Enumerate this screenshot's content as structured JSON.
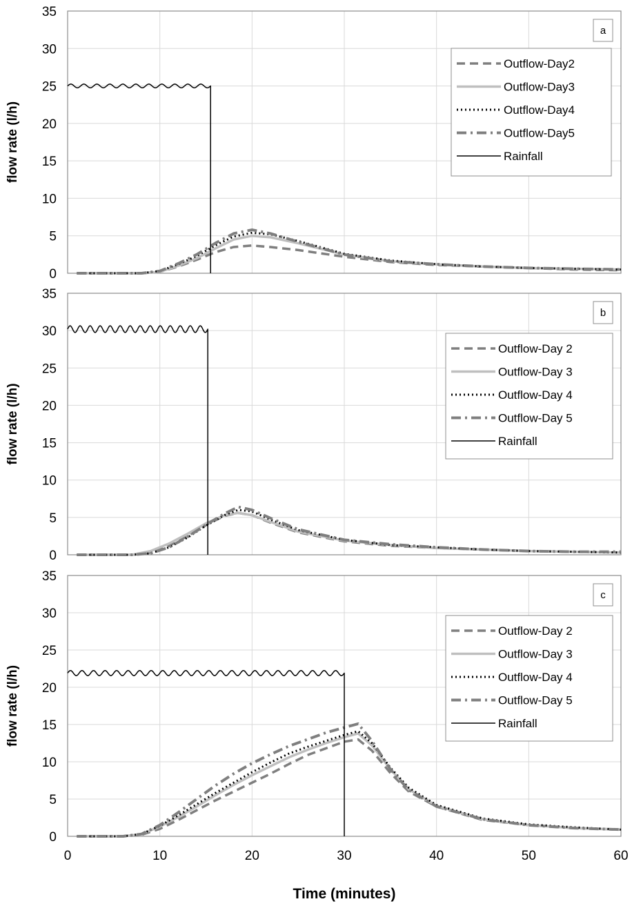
{
  "chart_data": [
    {
      "type": "line",
      "panel_label": "a",
      "ylabel": "flow rate (l/h)",
      "xlabel": "",
      "xlim": [
        0,
        60
      ],
      "ylim": [
        0,
        35
      ],
      "x_ticks": [
        0,
        10,
        20,
        30,
        40,
        50,
        60
      ],
      "y_ticks": [
        0,
        5,
        10,
        15,
        20,
        25,
        30,
        35
      ],
      "show_x_tick_labels": false,
      "grid": true,
      "legend_position": "top-right",
      "series": [
        {
          "name": "Outflow-Day2",
          "style": "dashed",
          "color": "#7f7f7f",
          "x": [
            1,
            8,
            10,
            12,
            14,
            16,
            18,
            20,
            22,
            25,
            30,
            35,
            40,
            45,
            50,
            55,
            60
          ],
          "y": [
            0,
            0,
            0.2,
            0.9,
            1.8,
            2.8,
            3.5,
            3.7,
            3.5,
            3.1,
            2.2,
            1.5,
            1.1,
            0.9,
            0.7,
            0.5,
            0.4
          ]
        },
        {
          "name": "Outflow-Day3",
          "style": "solid",
          "color": "#bfbfbf",
          "x": [
            1,
            8,
            10,
            12,
            14,
            16,
            18,
            20,
            22,
            25,
            30,
            35,
            40,
            45,
            50,
            55,
            60
          ],
          "y": [
            0,
            0,
            0.2,
            1.0,
            2.0,
            3.3,
            4.5,
            5.0,
            4.8,
            4.0,
            2.5,
            1.6,
            1.2,
            0.9,
            0.7,
            0.6,
            0.5
          ]
        },
        {
          "name": "Outflow-Day4",
          "style": "dotted",
          "color": "#000000",
          "x": [
            1,
            8,
            10,
            12,
            14,
            16,
            18,
            20,
            22,
            25,
            30,
            35,
            40,
            45,
            50,
            55,
            60
          ],
          "y": [
            0,
            0,
            0.3,
            1.2,
            2.3,
            3.7,
            4.9,
            5.4,
            5.2,
            4.3,
            2.6,
            1.7,
            1.2,
            0.9,
            0.7,
            0.6,
            0.5
          ]
        },
        {
          "name": "Outflow-Day5",
          "style": "dashdot",
          "color": "#7f7f7f",
          "x": [
            1,
            8,
            10,
            12,
            14,
            16,
            18,
            20,
            22,
            25,
            30,
            35,
            40,
            45,
            50,
            55,
            60
          ],
          "y": [
            0,
            0,
            0.3,
            1.3,
            2.5,
            4.0,
            5.3,
            5.8,
            5.3,
            4.2,
            2.5,
            1.6,
            1.2,
            0.9,
            0.7,
            0.6,
            0.5
          ]
        },
        {
          "name": "Rainfall",
          "style": "rainfall",
          "color": "#000000",
          "x": [
            0,
            15.5
          ],
          "y": [
            25.0,
            25.0
          ],
          "wobble": 0.25,
          "wobble_count": 11
        }
      ]
    },
    {
      "type": "line",
      "panel_label": "b",
      "ylabel": "flow rate (l/h)",
      "xlabel": "",
      "xlim": [
        0,
        60
      ],
      "ylim": [
        0,
        35
      ],
      "x_ticks": [
        0,
        10,
        20,
        30,
        40,
        50,
        60
      ],
      "y_ticks": [
        0,
        5,
        10,
        15,
        20,
        25,
        30,
        35
      ],
      "show_x_tick_labels": false,
      "grid": true,
      "legend_position": "top-right",
      "series": [
        {
          "name": "Outflow-Day 2",
          "style": "dashed",
          "color": "#7f7f7f",
          "x": [
            1,
            7,
            9,
            11,
            13,
            15,
            17,
            18.5,
            20,
            22,
            25,
            30,
            35,
            40,
            45,
            50,
            55,
            60
          ],
          "y": [
            0,
            0,
            0.3,
            1.2,
            2.5,
            4.0,
            5.2,
            5.6,
            5.3,
            4.3,
            3.0,
            1.8,
            1.2,
            0.9,
            0.7,
            0.5,
            0.4,
            0.3
          ]
        },
        {
          "name": "Outflow-Day 3",
          "style": "solid",
          "color": "#bfbfbf",
          "x": [
            1,
            7,
            9,
            11,
            13,
            15,
            17,
            18.5,
            20,
            22,
            25,
            30,
            35,
            40,
            45,
            50,
            55,
            60
          ],
          "y": [
            0,
            0,
            0.5,
            1.5,
            2.8,
            4.2,
            5.3,
            5.6,
            5.3,
            4.4,
            3.1,
            1.9,
            1.3,
            0.9,
            0.7,
            0.5,
            0.4,
            0.3
          ]
        },
        {
          "name": "Outflow-Day 4",
          "style": "dotted",
          "color": "#000000",
          "x": [
            1,
            7,
            9,
            11,
            13,
            15,
            17,
            18.5,
            20,
            22,
            25,
            30,
            35,
            40,
            45,
            50,
            55,
            60
          ],
          "y": [
            0,
            0,
            0.2,
            1.0,
            2.3,
            3.9,
            5.3,
            6.0,
            5.8,
            4.7,
            3.3,
            2.0,
            1.3,
            1.0,
            0.7,
            0.5,
            0.4,
            0.3
          ]
        },
        {
          "name": "Outflow-Day 5",
          "style": "dashdot",
          "color": "#7f7f7f",
          "x": [
            1,
            7,
            9,
            11,
            13,
            15,
            17,
            18.5,
            20,
            22,
            25,
            30,
            35,
            40,
            45,
            50,
            55,
            60
          ],
          "y": [
            0,
            0,
            0.2,
            1.0,
            2.4,
            4.0,
            5.5,
            6.4,
            6.0,
            4.9,
            3.4,
            2.0,
            1.4,
            1.0,
            0.7,
            0.5,
            0.4,
            0.4
          ]
        },
        {
          "name": "Rainfall",
          "style": "rainfall",
          "color": "#000000",
          "x": [
            0,
            15.2
          ],
          "y": [
            30.2,
            30.2
          ],
          "wobble": 0.45,
          "wobble_count": 14
        }
      ]
    },
    {
      "type": "line",
      "panel_label": "c",
      "ylabel": "flow rate (l/h)",
      "xlabel": "Time (minutes)",
      "xlim": [
        0,
        60
      ],
      "ylim": [
        0,
        35
      ],
      "x_ticks": [
        0,
        10,
        20,
        30,
        40,
        50,
        60
      ],
      "y_ticks": [
        0,
        5,
        10,
        15,
        20,
        25,
        30,
        35
      ],
      "show_x_tick_labels": true,
      "grid": true,
      "legend_position": "center-right",
      "series": [
        {
          "name": "Outflow-Day 2",
          "style": "dashed",
          "color": "#7f7f7f",
          "x": [
            1,
            6,
            8,
            10,
            12,
            14,
            16,
            18,
            20,
            22,
            24,
            26,
            28,
            30,
            31.5,
            33,
            35,
            37,
            40,
            45,
            50,
            55,
            60
          ],
          "y": [
            0,
            0,
            0.2,
            1.0,
            2.2,
            3.5,
            4.8,
            6.0,
            7.2,
            8.4,
            9.7,
            10.9,
            11.8,
            12.7,
            13.0,
            11.5,
            8.5,
            6.0,
            4.0,
            2.2,
            1.5,
            1.1,
            0.9
          ]
        },
        {
          "name": "Outflow-Day 3",
          "style": "solid",
          "color": "#bfbfbf",
          "x": [
            1,
            6,
            8,
            10,
            12,
            14,
            16,
            18,
            20,
            22,
            24,
            26,
            28,
            30,
            31.5,
            33,
            35,
            37,
            40,
            45,
            50,
            55,
            60
          ],
          "y": [
            0,
            0,
            0.3,
            1.3,
            2.6,
            4.0,
            5.5,
            6.9,
            8.2,
            9.4,
            10.6,
            11.6,
            12.5,
            13.3,
            13.8,
            12.2,
            9.0,
            6.3,
            4.1,
            2.3,
            1.5,
            1.1,
            0.9
          ]
        },
        {
          "name": "Outflow-Day 4",
          "style": "dotted",
          "color": "#000000",
          "x": [
            1,
            6,
            8,
            10,
            12,
            14,
            16,
            18,
            20,
            22,
            24,
            26,
            28,
            30,
            31.5,
            33,
            35,
            37,
            40,
            45,
            50,
            55,
            60
          ],
          "y": [
            0,
            0,
            0.3,
            1.4,
            2.8,
            4.3,
            5.8,
            7.2,
            8.6,
            9.9,
            11.1,
            12.0,
            12.8,
            13.6,
            14.1,
            12.5,
            9.2,
            6.5,
            4.2,
            2.4,
            1.6,
            1.2,
            0.9
          ]
        },
        {
          "name": "Outflow-Day 5",
          "style": "dashdot",
          "color": "#7f7f7f",
          "x": [
            1,
            6,
            8,
            10,
            12,
            14,
            16,
            18,
            20,
            22,
            24,
            26,
            28,
            30,
            31.5,
            33,
            35,
            37,
            40,
            45,
            50,
            55,
            60
          ],
          "y": [
            0,
            0,
            0.3,
            1.5,
            3.2,
            5.0,
            6.8,
            8.4,
            9.8,
            11.0,
            12.1,
            13.0,
            13.9,
            14.6,
            15.1,
            12.8,
            9.0,
            6.2,
            4.0,
            2.3,
            1.5,
            1.1,
            0.9
          ]
        },
        {
          "name": "Rainfall",
          "style": "rainfall",
          "color": "#000000",
          "x": [
            0,
            30.0
          ],
          "y": [
            21.9,
            21.9
          ],
          "wobble": 0.35,
          "wobble_count": 24
        }
      ]
    }
  ]
}
